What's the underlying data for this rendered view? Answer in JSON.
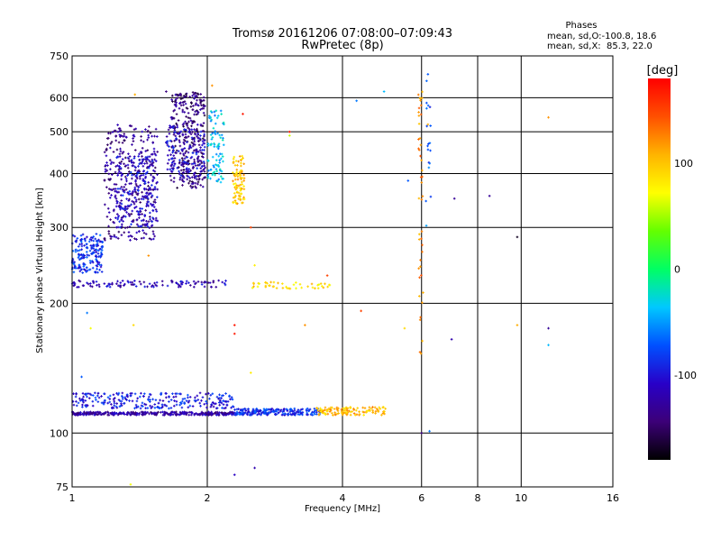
{
  "chart_data": {
    "type": "scatter",
    "title": "Tromsø 20161206 07:08:00–07:09:43",
    "subtitle": "RwPretec (8p)",
    "xlabel": "Frequency [MHz]",
    "ylabel": "Stationary phase Virtual Height [km]",
    "x_scale": "log",
    "y_scale": "log",
    "xlim": [
      1,
      16
    ],
    "ylim": [
      75,
      750
    ],
    "x_ticks": [
      1,
      2,
      4,
      6,
      8,
      10,
      16
    ],
    "y_ticks": [
      75,
      100,
      200,
      300,
      400,
      500,
      600,
      750
    ],
    "grid": true,
    "phases": {
      "header": "Phases",
      "o_line": "mean, sd,O:-100.8, 18.6",
      "x_line": "mean, sd,X:  85.3, 22.0"
    },
    "colorbar": {
      "label": "[deg]",
      "range": [
        -180,
        180
      ],
      "ticks": [
        100,
        0,
        -100
      ],
      "colors": [
        "#000000",
        "#3c0078",
        "#2800c8",
        "#0050ff",
        "#00c8ff",
        "#00ff64",
        "#64ff00",
        "#ffff00",
        "#ffb400",
        "#ff5000",
        "#ff0000"
      ]
    },
    "series": [
      {
        "f_range": [
          1.0,
          1.17
        ],
        "h_range": [
          235,
          290
        ],
        "count": 180,
        "phase": -85
      },
      {
        "f_range": [
          1.18,
          1.55
        ],
        "h_range": [
          280,
          520
        ],
        "count": 330,
        "phase": -130
      },
      {
        "f_range": [
          1.25,
          1.55
        ],
        "h_range": [
          300,
          440
        ],
        "count": 200,
        "phase": -105
      },
      {
        "f_range": [
          1.66,
          1.98
        ],
        "h_range": [
          370,
          620
        ],
        "count": 300,
        "phase": -140
      },
      {
        "f_range": [
          1.62,
          1.98
        ],
        "h_range": [
          390,
          520
        ],
        "count": 150,
        "phase": -110
      },
      {
        "f_range": [
          2.0,
          2.18
        ],
        "h_range": [
          380,
          560
        ],
        "count": 90,
        "phase": -40
      },
      {
        "f_range": [
          2.28,
          2.42
        ],
        "h_range": [
          340,
          440
        ],
        "count": 90,
        "phase": 100
      },
      {
        "f_range": [
          1.0,
          2.2
        ],
        "h_range": [
          218,
          226
        ],
        "count": 110,
        "phase": -115
      },
      {
        "f_range": [
          2.5,
          3.8
        ],
        "h_range": [
          216,
          224
        ],
        "count": 45,
        "phase": 90
      },
      {
        "f_range": [
          1.0,
          2.3
        ],
        "h_range": [
          110,
          112
        ],
        "count": 320,
        "phase": -125
      },
      {
        "f_range": [
          1.0,
          2.3
        ],
        "h_range": [
          114,
          124
        ],
        "count": 260,
        "phase": -95
      },
      {
        "f_range": [
          2.3,
          3.6
        ],
        "h_range": [
          110,
          114
        ],
        "count": 220,
        "phase": -85
      },
      {
        "f_range": [
          3.5,
          5.0
        ],
        "h_range": [
          110,
          115
        ],
        "count": 120,
        "phase": 105
      },
      {
        "f_range": [
          5.9,
          6.05
        ],
        "h_range": [
          150,
          650
        ],
        "count": 45,
        "phase": 120
      },
      {
        "f_range": [
          6.1,
          6.35
        ],
        "h_range": [
          300,
          680
        ],
        "count": 18,
        "phase": -70
      }
    ],
    "points": [
      {
        "f": 1.38,
        "h": 610,
        "phase": 110
      },
      {
        "f": 1.62,
        "h": 620,
        "phase": -140
      },
      {
        "f": 2.05,
        "h": 640,
        "phase": 120
      },
      {
        "f": 2.4,
        "h": 550,
        "phase": 170
      },
      {
        "f": 3.05,
        "h": 500,
        "phase": 170
      },
      {
        "f": 3.05,
        "h": 490,
        "phase": 60
      },
      {
        "f": 4.3,
        "h": 590,
        "phase": -60
      },
      {
        "f": 4.95,
        "h": 620,
        "phase": -40
      },
      {
        "f": 5.6,
        "h": 385,
        "phase": -70
      },
      {
        "f": 6.2,
        "h": 680,
        "phase": -70
      },
      {
        "f": 6.2,
        "h": 520,
        "phase": 110
      },
      {
        "f": 7.1,
        "h": 350,
        "phase": -130
      },
      {
        "f": 8.5,
        "h": 355,
        "phase": -130
      },
      {
        "f": 9.8,
        "h": 285,
        "phase": -170
      },
      {
        "f": 11.5,
        "h": 540,
        "phase": 120
      },
      {
        "f": 11.5,
        "h": 175,
        "phase": -130
      },
      {
        "f": 11.5,
        "h": 160,
        "phase": -40
      },
      {
        "f": 9.8,
        "h": 178,
        "phase": 110
      },
      {
        "f": 7.0,
        "h": 165,
        "phase": -120
      },
      {
        "f": 5.5,
        "h": 175,
        "phase": 90
      },
      {
        "f": 4.4,
        "h": 192,
        "phase": 150
      },
      {
        "f": 3.3,
        "h": 178,
        "phase": 120
      },
      {
        "f": 2.3,
        "h": 178,
        "phase": 170
      },
      {
        "f": 2.3,
        "h": 170,
        "phase": 170
      },
      {
        "f": 1.37,
        "h": 178,
        "phase": 90
      },
      {
        "f": 1.1,
        "h": 175,
        "phase": 70
      },
      {
        "f": 1.08,
        "h": 190,
        "phase": -60
      },
      {
        "f": 1.05,
        "h": 135,
        "phase": -70
      },
      {
        "f": 1.35,
        "h": 76,
        "phase": 70
      },
      {
        "f": 2.3,
        "h": 80,
        "phase": -110
      },
      {
        "f": 2.55,
        "h": 83,
        "phase": -120
      },
      {
        "f": 6.0,
        "h": 100,
        "phase": -140
      },
      {
        "f": 6.25,
        "h": 101,
        "phase": -60
      },
      {
        "f": 1.48,
        "h": 258,
        "phase": 120
      },
      {
        "f": 2.55,
        "h": 245,
        "phase": 80
      },
      {
        "f": 2.5,
        "h": 138,
        "phase": 80
      },
      {
        "f": 3.7,
        "h": 232,
        "phase": 150
      },
      {
        "f": 2.5,
        "h": 300,
        "phase": 150
      }
    ]
  }
}
